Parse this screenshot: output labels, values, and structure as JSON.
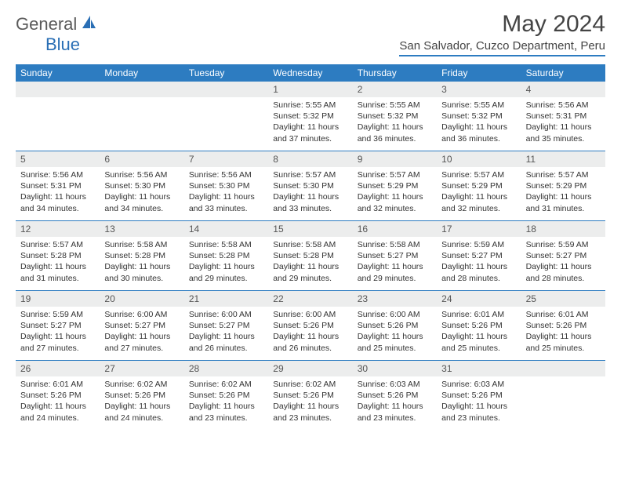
{
  "logo": {
    "general": "General",
    "blue": "Blue"
  },
  "title": "May 2024",
  "location": "San Salvador, Cuzco Department, Peru",
  "day_labels": [
    "Sunday",
    "Monday",
    "Tuesday",
    "Wednesday",
    "Thursday",
    "Friday",
    "Saturday"
  ],
  "colors": {
    "header_bg": "#2d7cc1",
    "header_text": "#ffffff",
    "daynum_bg": "#eceded",
    "text": "#333333",
    "title_text": "#444444"
  },
  "weeks": [
    [
      {
        "n": "",
        "sr": "",
        "ss": "",
        "dl": ""
      },
      {
        "n": "",
        "sr": "",
        "ss": "",
        "dl": ""
      },
      {
        "n": "",
        "sr": "",
        "ss": "",
        "dl": ""
      },
      {
        "n": "1",
        "sr": "Sunrise: 5:55 AM",
        "ss": "Sunset: 5:32 PM",
        "dl": "Daylight: 11 hours and 37 minutes."
      },
      {
        "n": "2",
        "sr": "Sunrise: 5:55 AM",
        "ss": "Sunset: 5:32 PM",
        "dl": "Daylight: 11 hours and 36 minutes."
      },
      {
        "n": "3",
        "sr": "Sunrise: 5:55 AM",
        "ss": "Sunset: 5:32 PM",
        "dl": "Daylight: 11 hours and 36 minutes."
      },
      {
        "n": "4",
        "sr": "Sunrise: 5:56 AM",
        "ss": "Sunset: 5:31 PM",
        "dl": "Daylight: 11 hours and 35 minutes."
      }
    ],
    [
      {
        "n": "5",
        "sr": "Sunrise: 5:56 AM",
        "ss": "Sunset: 5:31 PM",
        "dl": "Daylight: 11 hours and 34 minutes."
      },
      {
        "n": "6",
        "sr": "Sunrise: 5:56 AM",
        "ss": "Sunset: 5:30 PM",
        "dl": "Daylight: 11 hours and 34 minutes."
      },
      {
        "n": "7",
        "sr": "Sunrise: 5:56 AM",
        "ss": "Sunset: 5:30 PM",
        "dl": "Daylight: 11 hours and 33 minutes."
      },
      {
        "n": "8",
        "sr": "Sunrise: 5:57 AM",
        "ss": "Sunset: 5:30 PM",
        "dl": "Daylight: 11 hours and 33 minutes."
      },
      {
        "n": "9",
        "sr": "Sunrise: 5:57 AM",
        "ss": "Sunset: 5:29 PM",
        "dl": "Daylight: 11 hours and 32 minutes."
      },
      {
        "n": "10",
        "sr": "Sunrise: 5:57 AM",
        "ss": "Sunset: 5:29 PM",
        "dl": "Daylight: 11 hours and 32 minutes."
      },
      {
        "n": "11",
        "sr": "Sunrise: 5:57 AM",
        "ss": "Sunset: 5:29 PM",
        "dl": "Daylight: 11 hours and 31 minutes."
      }
    ],
    [
      {
        "n": "12",
        "sr": "Sunrise: 5:57 AM",
        "ss": "Sunset: 5:28 PM",
        "dl": "Daylight: 11 hours and 31 minutes."
      },
      {
        "n": "13",
        "sr": "Sunrise: 5:58 AM",
        "ss": "Sunset: 5:28 PM",
        "dl": "Daylight: 11 hours and 30 minutes."
      },
      {
        "n": "14",
        "sr": "Sunrise: 5:58 AM",
        "ss": "Sunset: 5:28 PM",
        "dl": "Daylight: 11 hours and 29 minutes."
      },
      {
        "n": "15",
        "sr": "Sunrise: 5:58 AM",
        "ss": "Sunset: 5:28 PM",
        "dl": "Daylight: 11 hours and 29 minutes."
      },
      {
        "n": "16",
        "sr": "Sunrise: 5:58 AM",
        "ss": "Sunset: 5:27 PM",
        "dl": "Daylight: 11 hours and 29 minutes."
      },
      {
        "n": "17",
        "sr": "Sunrise: 5:59 AM",
        "ss": "Sunset: 5:27 PM",
        "dl": "Daylight: 11 hours and 28 minutes."
      },
      {
        "n": "18",
        "sr": "Sunrise: 5:59 AM",
        "ss": "Sunset: 5:27 PM",
        "dl": "Daylight: 11 hours and 28 minutes."
      }
    ],
    [
      {
        "n": "19",
        "sr": "Sunrise: 5:59 AM",
        "ss": "Sunset: 5:27 PM",
        "dl": "Daylight: 11 hours and 27 minutes."
      },
      {
        "n": "20",
        "sr": "Sunrise: 6:00 AM",
        "ss": "Sunset: 5:27 PM",
        "dl": "Daylight: 11 hours and 27 minutes."
      },
      {
        "n": "21",
        "sr": "Sunrise: 6:00 AM",
        "ss": "Sunset: 5:27 PM",
        "dl": "Daylight: 11 hours and 26 minutes."
      },
      {
        "n": "22",
        "sr": "Sunrise: 6:00 AM",
        "ss": "Sunset: 5:26 PM",
        "dl": "Daylight: 11 hours and 26 minutes."
      },
      {
        "n": "23",
        "sr": "Sunrise: 6:00 AM",
        "ss": "Sunset: 5:26 PM",
        "dl": "Daylight: 11 hours and 25 minutes."
      },
      {
        "n": "24",
        "sr": "Sunrise: 6:01 AM",
        "ss": "Sunset: 5:26 PM",
        "dl": "Daylight: 11 hours and 25 minutes."
      },
      {
        "n": "25",
        "sr": "Sunrise: 6:01 AM",
        "ss": "Sunset: 5:26 PM",
        "dl": "Daylight: 11 hours and 25 minutes."
      }
    ],
    [
      {
        "n": "26",
        "sr": "Sunrise: 6:01 AM",
        "ss": "Sunset: 5:26 PM",
        "dl": "Daylight: 11 hours and 24 minutes."
      },
      {
        "n": "27",
        "sr": "Sunrise: 6:02 AM",
        "ss": "Sunset: 5:26 PM",
        "dl": "Daylight: 11 hours and 24 minutes."
      },
      {
        "n": "28",
        "sr": "Sunrise: 6:02 AM",
        "ss": "Sunset: 5:26 PM",
        "dl": "Daylight: 11 hours and 23 minutes."
      },
      {
        "n": "29",
        "sr": "Sunrise: 6:02 AM",
        "ss": "Sunset: 5:26 PM",
        "dl": "Daylight: 11 hours and 23 minutes."
      },
      {
        "n": "30",
        "sr": "Sunrise: 6:03 AM",
        "ss": "Sunset: 5:26 PM",
        "dl": "Daylight: 11 hours and 23 minutes."
      },
      {
        "n": "31",
        "sr": "Sunrise: 6:03 AM",
        "ss": "Sunset: 5:26 PM",
        "dl": "Daylight: 11 hours and 23 minutes."
      },
      {
        "n": "",
        "sr": "",
        "ss": "",
        "dl": ""
      }
    ]
  ]
}
